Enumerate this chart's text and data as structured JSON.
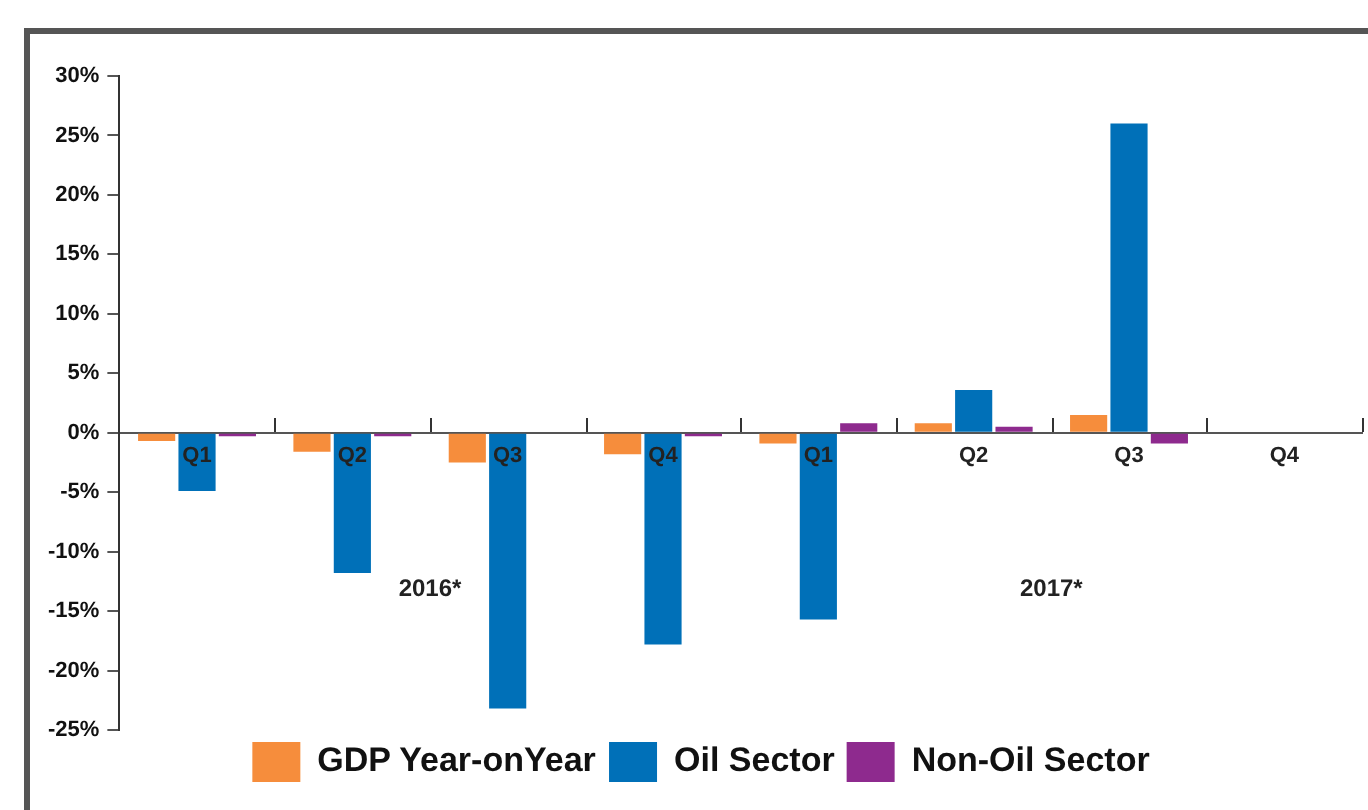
{
  "chart_data": {
    "type": "bar",
    "categories": [
      "Q1",
      "Q2",
      "Q3",
      "Q4",
      "Q1",
      "Q2",
      "Q3",
      "Q4"
    ],
    "series": [
      {
        "name": "GDP Year-onYear",
        "color": "#f68d3c",
        "values": [
          -0.7,
          -1.6,
          -2.5,
          -1.8,
          -0.9,
          0.8,
          1.5,
          null
        ]
      },
      {
        "name": "Oil Sector",
        "color": "#0070b8",
        "values": [
          -4.9,
          -11.8,
          -23.2,
          -17.8,
          -15.7,
          3.6,
          26.0,
          null
        ]
      },
      {
        "name": "Non-Oil Sector",
        "color": "#8e2a8e",
        "values": [
          -0.3,
          -0.3,
          null,
          -0.3,
          0.8,
          0.5,
          -0.9,
          null
        ]
      }
    ],
    "ylim": [
      -25,
      30
    ],
    "yticks": [
      {
        "value": -25,
        "label": "-25%"
      },
      {
        "value": -20,
        "label": "-20%"
      },
      {
        "value": -15,
        "label": "-15%"
      },
      {
        "value": -10,
        "label": "-10%"
      },
      {
        "value": -5,
        "label": "-5%"
      },
      {
        "value": 0,
        "label": "0%"
      },
      {
        "value": 5,
        "label": "5%"
      },
      {
        "value": 10,
        "label": "10%"
      },
      {
        "value": 15,
        "label": "15%"
      },
      {
        "value": 20,
        "label": "20%"
      },
      {
        "value": 25,
        "label": "25%"
      },
      {
        "value": 30,
        "label": "30%"
      }
    ],
    "annotations": [
      "2016*",
      "2017*"
    ],
    "grid": false,
    "legend": "bottom"
  }
}
